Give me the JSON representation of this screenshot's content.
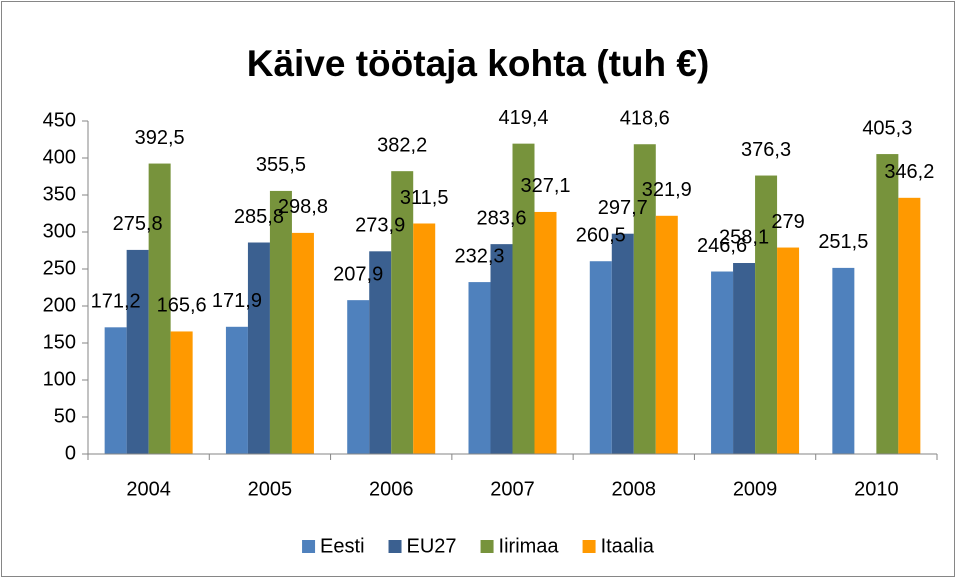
{
  "chart_data": {
    "type": "bar",
    "title": "Käive töötaja kohta (tuh €)",
    "categories": [
      "2004",
      "2005",
      "2006",
      "2007",
      "2008",
      "2009",
      "2010"
    ],
    "series": [
      {
        "name": "Eesti",
        "color": "#4f81bd",
        "values": [
          171.2,
          171.9,
          207.9,
          232.3,
          260.5,
          246.6,
          251.5
        ],
        "value_labels": [
          "171,2",
          "171,9",
          "207,9",
          "232,3",
          "260,5",
          "246,6",
          "251,5"
        ]
      },
      {
        "name": "EU27",
        "color": "#3b6090",
        "values": [
          275.8,
          285.8,
          273.9,
          283.6,
          297.7,
          258.1,
          null
        ],
        "value_labels": [
          "275,8",
          "285,8",
          "273,9",
          "283,6",
          "297,7",
          "258,1",
          null
        ]
      },
      {
        "name": "Iirimaa",
        "color": "#77933c",
        "values": [
          392.5,
          355.5,
          382.2,
          419.4,
          418.6,
          376.3,
          405.3
        ],
        "value_labels": [
          "392,5",
          "355,5",
          "382,2",
          "419,4",
          "418,6",
          "376,3",
          "405,3"
        ]
      },
      {
        "name": "Itaalia",
        "color": "#ff9900",
        "values": [
          165.6,
          298.8,
          311.5,
          327.1,
          321.9,
          279,
          346.2
        ],
        "value_labels": [
          "165,6",
          "298,8",
          "311,5",
          "327,1",
          "321,9",
          "279",
          "346,2"
        ]
      }
    ],
    "ylim": [
      0,
      450
    ],
    "yticks": [
      0,
      50,
      100,
      150,
      200,
      250,
      300,
      350,
      400,
      450
    ],
    "grid": false,
    "legend": "bottom"
  }
}
